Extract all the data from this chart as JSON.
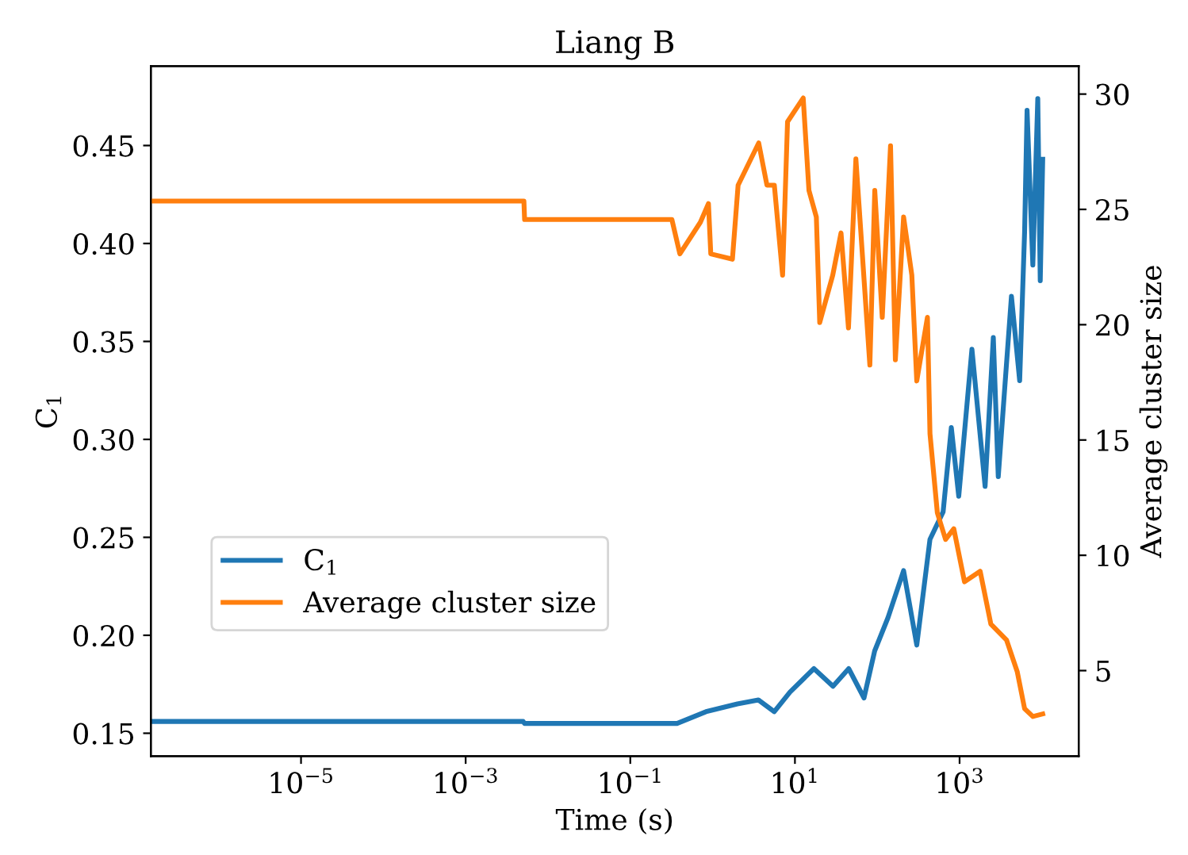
{
  "chart_data": {
    "type": "line",
    "title": "Liang B",
    "xlabel": "Time (s)",
    "ylabel": "C$_{1}$",
    "y2label": "Average cluster size",
    "log": "x",
    "legend": "left",
    "grid": false,
    "xlim": [
      1.5e-07,
      28000
    ],
    "xticks": [
      {
        "value": 1e-05,
        "label": "10$^{−5}$"
      },
      {
        "value": 0.001,
        "label": "10$^{−3}$"
      },
      {
        "value": 0.1,
        "label": "10$^{−1}$"
      },
      {
        "value": 10,
        "label": "10$^{1}$"
      },
      {
        "value": 1000,
        "label": "10$^{3}$"
      }
    ],
    "ylim": [
      0.1383,
      0.4905
    ],
    "yticks": [
      {
        "value": 0.15,
        "label": "0.15"
      },
      {
        "value": 0.2,
        "label": "0.20"
      },
      {
        "value": 0.25,
        "label": "0.25"
      },
      {
        "value": 0.3,
        "label": "0.30"
      },
      {
        "value": 0.35,
        "label": "0.35"
      },
      {
        "value": 0.4,
        "label": "0.40"
      },
      {
        "value": 0.45,
        "label": "0.45"
      }
    ],
    "y2lim": [
      1.29,
      31.21
    ],
    "y2ticks": [
      5,
      10,
      15,
      20,
      25,
      30
    ],
    "series": [
      {
        "name": "C$_{1}$",
        "color": "#1f77b4",
        "x": [
          1.5e-07,
          0.005,
          0.0052,
          0.32,
          0.37,
          0.83,
          2.0,
          3.6,
          5.6,
          8.7,
          17,
          29,
          45,
          69,
          93,
          135,
          209,
          302,
          437,
          631,
          794,
          977,
          1413,
          2042,
          2570,
          2951,
          4266,
          5370,
          6166,
          6607,
          7762,
          8913,
          9550,
          10233
        ],
        "values": [
          0.156,
          0.156,
          0.155,
          0.155,
          0.155,
          0.161,
          0.165,
          0.167,
          0.161,
          0.171,
          0.183,
          0.174,
          0.183,
          0.168,
          0.192,
          0.209,
          0.233,
          0.195,
          0.249,
          0.263,
          0.306,
          0.271,
          0.346,
          0.276,
          0.352,
          0.281,
          0.373,
          0.33,
          0.406,
          0.468,
          0.389,
          0.474,
          0.381,
          0.443
        ]
      },
      {
        "name": "Average cluster size",
        "color": "#ff7f0e",
        "axis": "y2",
        "x": [
          1.5e-07,
          0.0051,
          0.0052,
          0.32,
          0.4,
          0.71,
          0.89,
          0.95,
          1.74,
          2.04,
          3.63,
          4.57,
          5.62,
          7.08,
          8.13,
          12.6,
          14.8,
          18.2,
          20,
          28.8,
          36.3,
          44.7,
          55,
          81.3,
          93.3,
          115,
          145,
          166,
          209,
          263,
          302,
          407,
          437,
          537,
          676,
          851,
          1148,
          1778,
          2399,
          3715,
          5012,
          6166,
          7762,
          10233
        ],
        "values": [
          25.36,
          25.36,
          24.56,
          24.56,
          23.07,
          24.44,
          25.25,
          23.07,
          22.84,
          26.05,
          27.88,
          26.05,
          26.05,
          22.15,
          28.8,
          29.83,
          25.82,
          24.67,
          20.09,
          22.15,
          23.98,
          19.86,
          27.19,
          18.25,
          25.82,
          20.32,
          27.76,
          18.48,
          24.67,
          22.15,
          17.56,
          20.32,
          15.27,
          11.84,
          10.69,
          11.15,
          8.85,
          9.31,
          7.02,
          6.33,
          4.96,
          3.35,
          3.01,
          3.12
        ]
      }
    ]
  }
}
